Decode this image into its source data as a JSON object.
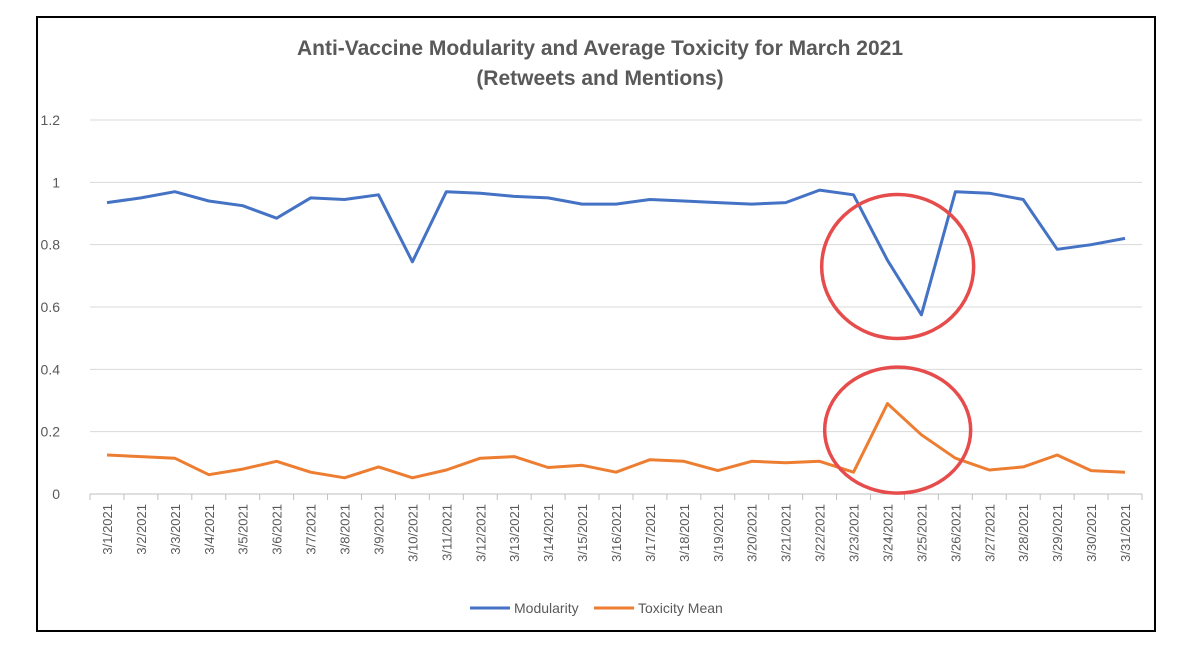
{
  "chart_data": {
    "type": "line",
    "title": "Anti-Vaccine Modularity and Average Toxicity for March 2021",
    "subtitle": "(Retweets and Mentions)",
    "xlabel": "",
    "ylabel": "",
    "ylim": [
      0,
      1.2
    ],
    "yticks": [
      "0",
      "0.2",
      "0.4",
      "0.6",
      "0.8",
      "1",
      "1.2"
    ],
    "grid": true,
    "legend_position": "bottom",
    "categories": [
      "3/1/2021",
      "3/2/2021",
      "3/3/2021",
      "3/4/2021",
      "3/5/2021",
      "3/6/2021",
      "3/7/2021",
      "3/8/2021",
      "3/9/2021",
      "3/10/2021",
      "3/11/2021",
      "3/12/2021",
      "3/13/2021",
      "3/14/2021",
      "3/15/2021",
      "3/16/2021",
      "3/17/2021",
      "3/18/2021",
      "3/19/2021",
      "3/20/2021",
      "3/21/2021",
      "3/22/2021",
      "3/23/2021",
      "3/24/2021",
      "3/25/2021",
      "3/26/2021",
      "3/27/2021",
      "3/28/2021",
      "3/29/2021",
      "3/30/2021",
      "3/31/2021"
    ],
    "series": [
      {
        "name": "Modularity",
        "color": "#4472C4",
        "values": [
          0.935,
          0.95,
          0.97,
          0.94,
          0.925,
          0.885,
          0.95,
          0.945,
          0.96,
          0.745,
          0.97,
          0.965,
          0.955,
          0.95,
          0.93,
          0.93,
          0.945,
          0.94,
          0.935,
          0.93,
          0.935,
          0.975,
          0.96,
          0.75,
          0.575,
          0.97,
          0.965,
          0.945,
          0.785,
          0.8,
          0.82
        ]
      },
      {
        "name": "Toxicity Mean",
        "color": "#ED7D31",
        "values": [
          0.125,
          0.12,
          0.115,
          0.062,
          0.08,
          0.105,
          0.07,
          0.052,
          0.087,
          0.052,
          0.077,
          0.115,
          0.12,
          0.085,
          0.092,
          0.07,
          0.11,
          0.105,
          0.075,
          0.105,
          0.1,
          0.105,
          0.07,
          0.29,
          0.19,
          0.115,
          0.077,
          0.087,
          0.125,
          0.075,
          0.07
        ]
      }
    ],
    "annotations": [
      {
        "shape": "circle",
        "color": "#E74C4C",
        "around": "Modularity dip 3/24/2021–3/25/2021"
      },
      {
        "shape": "circle",
        "color": "#E74C4C",
        "around": "Toxicity Mean peak 3/24/2021"
      }
    ]
  }
}
